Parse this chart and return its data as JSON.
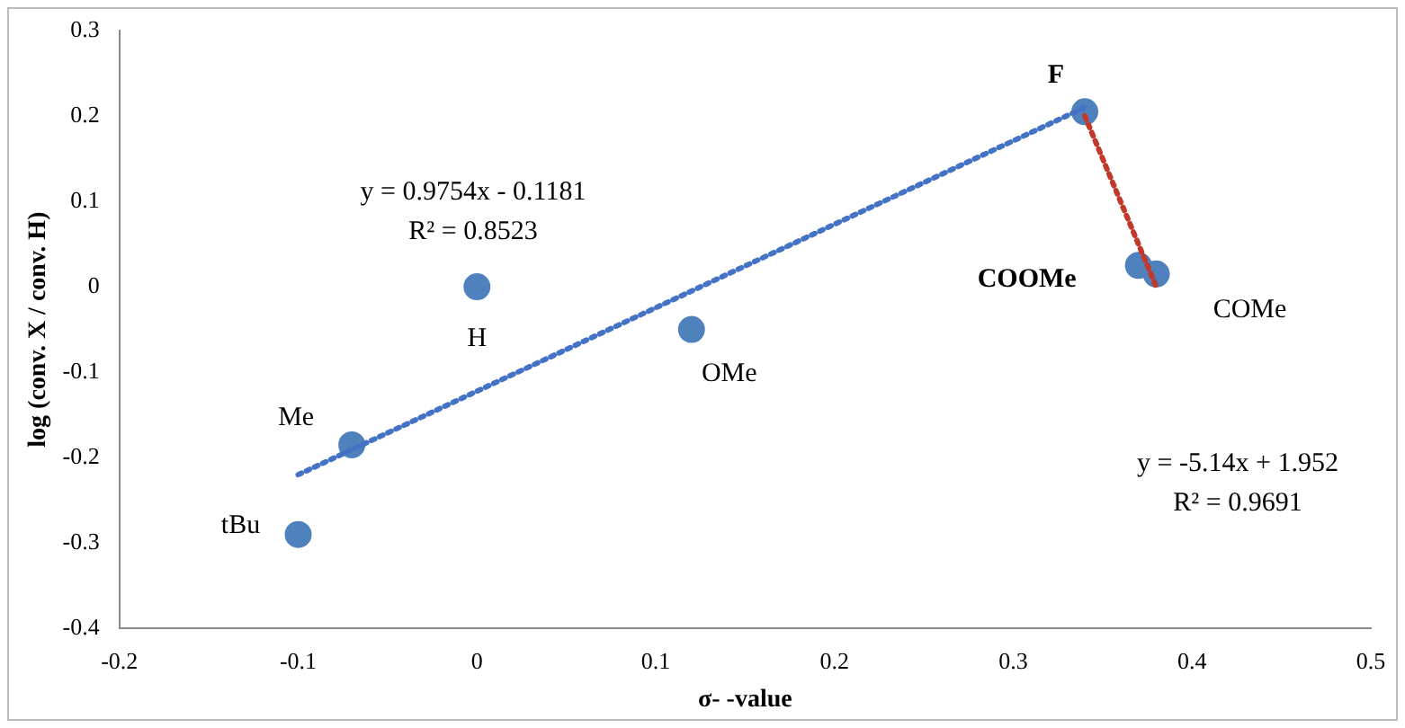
{
  "chart_data": {
    "type": "scatter",
    "xlabel": "σ- -value",
    "ylabel": "log (conv. X / conv. H)",
    "xlim": [
      -0.2,
      0.5
    ],
    "xticks": [
      -0.2,
      -0.1,
      0,
      0.1,
      0.2,
      0.3,
      0.4,
      0.5
    ],
    "ylim": [
      -0.4,
      0.3
    ],
    "yticks": [
      -0.4,
      -0.3,
      -0.2,
      -0.1,
      0,
      0.1,
      0.2,
      0.3
    ],
    "grid": false,
    "legend": false,
    "series": [
      {
        "type": "scatter",
        "color": "#4f81bd",
        "marker": "circle",
        "x": [
          -0.1,
          -0.07,
          0,
          0.12,
          0.34,
          0.37,
          0.38
        ],
        "values": [
          -0.29,
          -0.185,
          0,
          -0.05,
          0.205,
          0.025,
          0.015
        ]
      },
      {
        "type": "line",
        "color": "#4472c4",
        "marker": "none",
        "line_style": "dotted",
        "x": [
          -0.1,
          0.34
        ],
        "values": [
          -0.22,
          0.21
        ]
      },
      {
        "type": "line",
        "color": "#c0392b",
        "marker": "none",
        "line_style": "dotted",
        "x": [
          0.34,
          0.38
        ],
        "values": [
          0.2,
          0
        ]
      }
    ],
    "annotations": [
      {
        "text": "F",
        "x": 0.34,
        "y": 0.205
      },
      {
        "text": "H",
        "x": 0,
        "y": 0
      },
      {
        "text": "Me",
        "x": -0.07,
        "y": -0.185
      },
      {
        "text": "tBu",
        "x": -0.1,
        "y": -0.29
      },
      {
        "text": "OMe",
        "x": 0.12,
        "y": -0.05
      },
      {
        "text": "COOMe",
        "x": 0.37,
        "y": 0.025
      },
      {
        "text": "COMe",
        "x": 0.38,
        "y": 0.015
      },
      "y = 0.9754x - 0.1181",
      "R² = 0.8523",
      "y = -5.14x + 1.952",
      "R² = 0.9691"
    ]
  }
}
